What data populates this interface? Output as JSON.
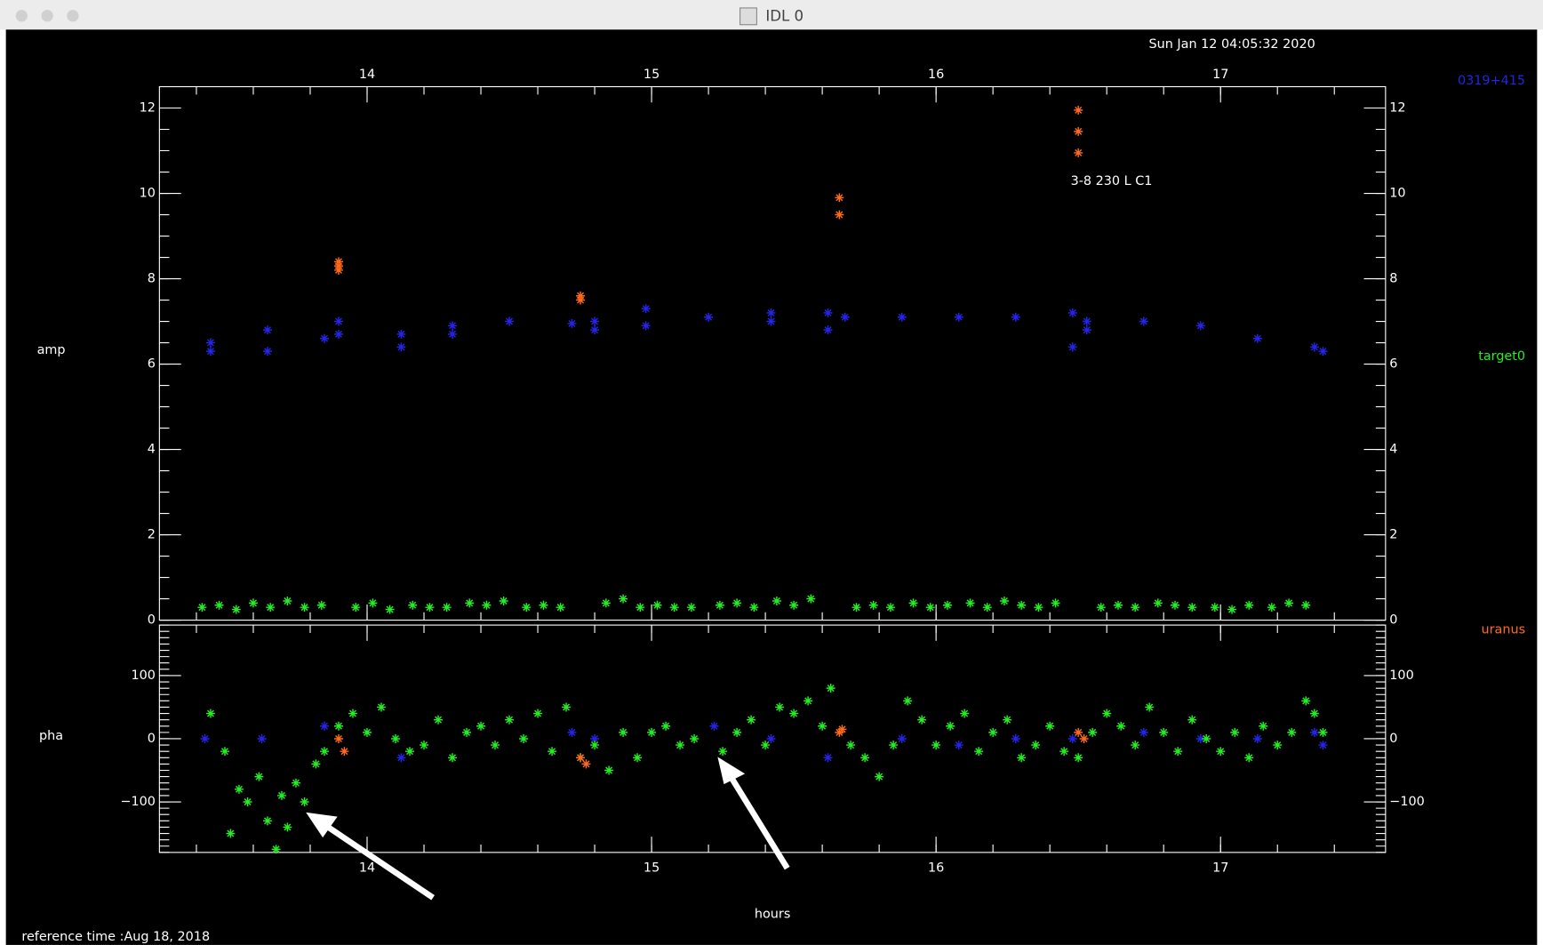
{
  "window": {
    "title": "IDL 0",
    "timestamp": "Sun Jan 12 04:05:32 2020",
    "reference": "reference time :Aug 18, 2018"
  },
  "chart_data": [
    {
      "type": "scatter",
      "ylabel": "amp",
      "annotation": "3-8 230 L C1",
      "xlim": [
        13.27,
        17.58
      ],
      "xticks": [
        14,
        15,
        16,
        17
      ],
      "ylim": [
        0,
        12.5
      ],
      "yticks": [
        0,
        2,
        4,
        6,
        8,
        10,
        12
      ],
      "series": [
        {
          "name": "0319+415",
          "color": "#2424e6",
          "x": [
            13.45,
            13.45,
            13.65,
            13.65,
            13.85,
            13.9,
            13.9,
            14.12,
            14.12,
            14.3,
            14.3,
            14.5,
            14.72,
            14.8,
            14.8,
            14.98,
            14.98,
            15.2,
            15.42,
            15.42,
            15.62,
            15.62,
            15.68,
            15.88,
            16.08,
            16.28,
            16.48,
            16.48,
            16.53,
            16.53,
            16.73,
            16.93,
            17.13,
            17.33,
            17.36
          ],
          "values": [
            6.5,
            6.3,
            6.8,
            6.3,
            6.6,
            7.0,
            6.7,
            6.7,
            6.4,
            6.9,
            6.7,
            7.0,
            6.95,
            7.0,
            6.8,
            7.3,
            6.9,
            7.1,
            7.2,
            7.0,
            7.2,
            6.8,
            7.1,
            7.1,
            7.1,
            7.1,
            7.2,
            6.4,
            7.0,
            6.8,
            7.0,
            6.9,
            6.6,
            6.4,
            6.3
          ]
        },
        {
          "name": "target0",
          "color": "#22ee22",
          "x": [
            13.42,
            13.48,
            13.54,
            13.6,
            13.66,
            13.72,
            13.78,
            13.84,
            13.96,
            14.02,
            14.08,
            14.16,
            14.22,
            14.28,
            14.36,
            14.42,
            14.48,
            14.56,
            14.62,
            14.68,
            14.84,
            14.9,
            14.96,
            15.02,
            15.08,
            15.14,
            15.24,
            15.3,
            15.36,
            15.44,
            15.5,
            15.56,
            15.72,
            15.78,
            15.84,
            15.92,
            15.98,
            16.04,
            16.12,
            16.18,
            16.24,
            16.3,
            16.36,
            16.42,
            16.58,
            16.64,
            16.7,
            16.78,
            16.84,
            16.9,
            16.98,
            17.04,
            17.1,
            17.18,
            17.24,
            17.3
          ],
          "values": [
            0.3,
            0.35,
            0.25,
            0.4,
            0.3,
            0.45,
            0.3,
            0.35,
            0.3,
            0.4,
            0.25,
            0.35,
            0.3,
            0.3,
            0.4,
            0.35,
            0.45,
            0.3,
            0.35,
            0.3,
            0.4,
            0.5,
            0.3,
            0.35,
            0.3,
            0.3,
            0.35,
            0.4,
            0.3,
            0.45,
            0.35,
            0.5,
            0.3,
            0.35,
            0.3,
            0.4,
            0.3,
            0.35,
            0.4,
            0.3,
            0.45,
            0.35,
            0.3,
            0.4,
            0.3,
            0.35,
            0.3,
            0.4,
            0.35,
            0.3,
            0.3,
            0.25,
            0.35,
            0.3,
            0.4,
            0.35
          ]
        },
        {
          "name": "uranus",
          "color": "#ff6a1a",
          "x": [
            13.9,
            13.9,
            13.9,
            14.75,
            14.75,
            15.66,
            15.66,
            16.5,
            16.5,
            16.5
          ],
          "values": [
            8.4,
            8.3,
            8.2,
            7.6,
            7.5,
            9.9,
            9.5,
            11.95,
            11.45,
            10.95
          ]
        }
      ]
    },
    {
      "type": "scatter",
      "ylabel": "pha",
      "xlabel": "hours",
      "xlim": [
        13.27,
        17.58
      ],
      "xticks": [
        14,
        15,
        16,
        17
      ],
      "ylim": [
        -180,
        180
      ],
      "yticks": [
        {
          "value": -100,
          "label": "−100"
        },
        0,
        100
      ],
      "series": [
        {
          "color": "#2424e6",
          "x": [
            13.43,
            13.63,
            13.85,
            14.12,
            14.72,
            14.8,
            15.22,
            15.42,
            15.62,
            15.88,
            16.08,
            16.28,
            16.48,
            16.73,
            16.93,
            17.13,
            17.33,
            17.36
          ],
          "values": [
            0,
            0,
            20,
            -30,
            10,
            0,
            20,
            0,
            -30,
            0,
            -10,
            0,
            0,
            10,
            0,
            0,
            10,
            -10
          ]
        },
        {
          "color": "#22ee22",
          "x": [
            13.45,
            13.5,
            13.52,
            13.55,
            13.58,
            13.62,
            13.65,
            13.68,
            13.7,
            13.72,
            13.75,
            13.78,
            13.82,
            13.85,
            13.9,
            13.95,
            14.0,
            14.05,
            14.1,
            14.15,
            14.2,
            14.25,
            14.3,
            14.35,
            14.4,
            14.45,
            14.5,
            14.55,
            14.6,
            14.65,
            14.7,
            14.75,
            14.8,
            14.85,
            14.9,
            14.95,
            15.0,
            15.05,
            15.1,
            15.15,
            15.25,
            15.3,
            15.35,
            15.4,
            15.45,
            15.5,
            15.55,
            15.6,
            15.63,
            15.7,
            15.75,
            15.8,
            15.85,
            15.9,
            15.95,
            16.0,
            16.05,
            16.1,
            16.15,
            16.2,
            16.25,
            16.3,
            16.35,
            16.4,
            16.45,
            16.5,
            16.55,
            16.6,
            16.65,
            16.7,
            16.75,
            16.8,
            16.85,
            16.9,
            16.95,
            17.0,
            17.05,
            17.1,
            17.15,
            17.2,
            17.25,
            17.3,
            17.33,
            17.36
          ],
          "values": [
            40,
            -20,
            -150,
            -80,
            -100,
            -60,
            -130,
            -175,
            -90,
            -140,
            -70,
            -100,
            -40,
            -20,
            20,
            40,
            10,
            50,
            0,
            -20,
            -10,
            30,
            -30,
            10,
            20,
            -10,
            30,
            0,
            40,
            -20,
            50,
            -30,
            -10,
            -50,
            10,
            -30,
            10,
            20,
            -10,
            0,
            -20,
            10,
            30,
            -10,
            50,
            40,
            60,
            20,
            80,
            -10,
            -30,
            -60,
            -10,
            60,
            30,
            -10,
            20,
            40,
            -20,
            10,
            30,
            -30,
            -10,
            20,
            -20,
            -30,
            10,
            40,
            20,
            -10,
            50,
            10,
            -20,
            30,
            0,
            -20,
            10,
            -30,
            20,
            -10,
            10,
            60,
            40,
            10
          ]
        },
        {
          "color": "#ff6a1a",
          "x": [
            13.9,
            13.92,
            14.75,
            14.77,
            15.66,
            15.67,
            16.5,
            16.52
          ],
          "values": [
            0,
            -20,
            -30,
            -40,
            10,
            15,
            10,
            0
          ]
        }
      ]
    }
  ]
}
